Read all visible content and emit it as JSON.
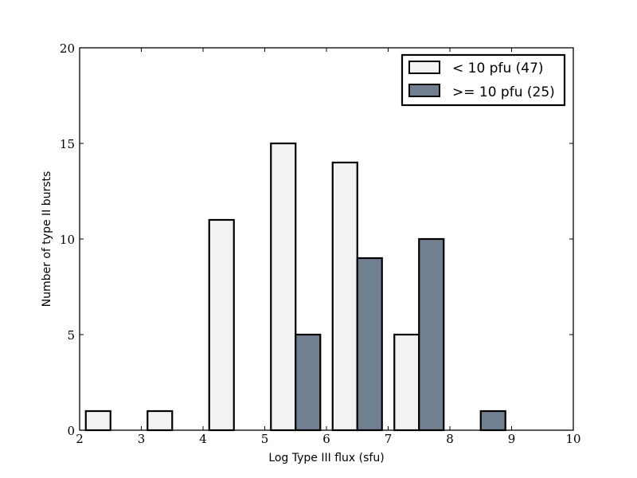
{
  "chart_data": {
    "type": "bar",
    "title": "",
    "xlabel": "Log Type III flux (sfu)",
    "ylabel": "Number of type II bursts",
    "xlim": [
      2,
      10
    ],
    "ylim": [
      0,
      20
    ],
    "x_ticks": [
      2,
      3,
      4,
      5,
      6,
      7,
      8,
      9,
      10
    ],
    "y_ticks": [
      0,
      5,
      10,
      15,
      20
    ],
    "bin_edges": [
      2,
      3,
      4,
      5,
      6,
      7,
      8,
      9,
      10
    ],
    "grid": false,
    "legend_position": "top-right",
    "series": [
      {
        "name": "< 10 pfu (47)",
        "color": "#f2f2f2",
        "values": [
          1,
          1,
          11,
          15,
          14,
          5,
          0,
          0
        ]
      },
      {
        "name": ">= 10 pfu (25)",
        "color": "#708090",
        "values": [
          0,
          0,
          0,
          5,
          9,
          10,
          1,
          0
        ]
      }
    ]
  }
}
